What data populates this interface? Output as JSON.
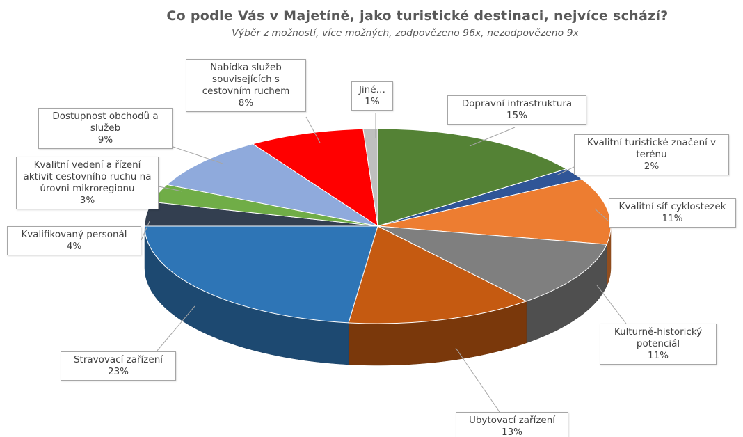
{
  "chart_data": {
    "type": "pie",
    "title": "Co podle Vás v Majetíně, jako turistické destinaci, nejvíce schází?",
    "subtitle": "Výběr z možností, více možných, zodpovězeno 96x, nezodpovězeno 9x",
    "categories": [
      "Dopravní infrastruktura",
      "Kvalitní turistické značení v terénu",
      "Kvalitní síť cyklostezek",
      "Kulturně-historický potenciál",
      "Ubytovací zařízení",
      "Stravovací zařízení",
      "Kvalifikovaný personál",
      "Kvalitní vedení a řízení aktivit cestovního ruchu na úrovni mikroregionu",
      "Dostupnost obchodů a služeb",
      "Nabídka služeb souvisejících s cestovním ruchem",
      "Jiné…"
    ],
    "values": [
      15,
      2,
      11,
      11,
      13,
      23,
      4,
      3,
      9,
      8,
      1
    ],
    "value_labels": [
      "15%",
      "2%",
      "11%",
      "11%",
      "13%",
      "23%",
      "4%",
      "3%",
      "9%",
      "8%",
      "1%"
    ],
    "colors": [
      "#548235",
      "#2f5597",
      "#ed7d31",
      "#7f7f7f",
      "#c55a11",
      "#2e75b6",
      "#333f50",
      "#70ad47",
      "#8faadc",
      "#ff0000",
      "#bfbfbf"
    ]
  }
}
